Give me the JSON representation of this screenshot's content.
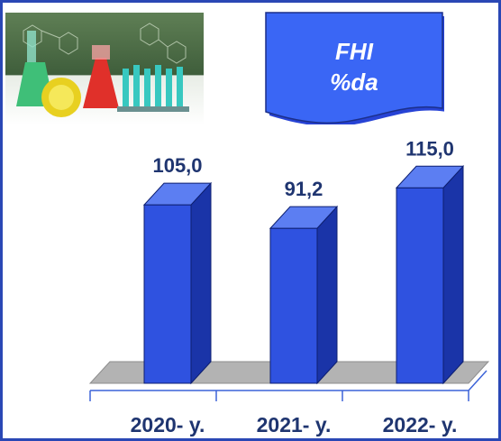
{
  "banner": {
    "line1": "FHI",
    "line2": "%da"
  },
  "colors": {
    "frame": "#2a47b5",
    "bar_front": "#2f52e0",
    "bar_side": "#1a34a8",
    "bar_top": "#5c7ef2",
    "floor": "#b3b3b3",
    "text": "#1f3570"
  },
  "icons": {
    "photo": "chemistry-lab-flasks-photo"
  },
  "chart_data": {
    "type": "bar",
    "categories": [
      "2020- y.",
      "2021- y.",
      "2022- y."
    ],
    "values": [
      105.0,
      91.2,
      115.0
    ],
    "data_labels": [
      "105,0",
      "91,2",
      "115,0"
    ],
    "title": "",
    "xlabel": "",
    "ylabel": "",
    "ylim": [
      0,
      130
    ],
    "grid": false,
    "legend": "none",
    "style": "3d-column"
  }
}
